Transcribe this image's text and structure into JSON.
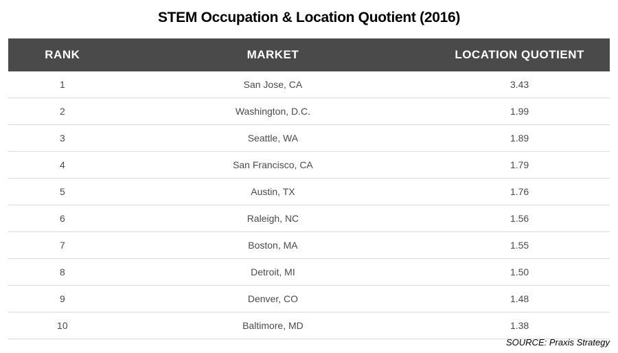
{
  "title": "STEM Occupation & Location Quotient (2016)",
  "source": "SOURCE: Praxis Strategy",
  "table": {
    "type": "table",
    "header_bg": "#4a4a4a",
    "header_color": "#ffffff",
    "row_border_color": "#d9d9d9",
    "cell_color": "#4a4a4a",
    "title_fontsize": 21,
    "header_fontsize": 17,
    "cell_fontsize": 14,
    "columns": [
      {
        "label": "RANK",
        "width_pct": 18
      },
      {
        "label": "MARKET",
        "width_pct": 52
      },
      {
        "label": "LOCATION QUOTIENT",
        "width_pct": 30
      }
    ],
    "rows": [
      {
        "rank": "1",
        "market": "San Jose, CA",
        "lq": "3.43"
      },
      {
        "rank": "2",
        "market": "Washington, D.C.",
        "lq": "1.99"
      },
      {
        "rank": "3",
        "market": "Seattle, WA",
        "lq": "1.89"
      },
      {
        "rank": "4",
        "market": "San Francisco, CA",
        "lq": "1.79"
      },
      {
        "rank": "5",
        "market": "Austin, TX",
        "lq": "1.76"
      },
      {
        "rank": "6",
        "market": "Raleigh, NC",
        "lq": "1.56"
      },
      {
        "rank": "7",
        "market": "Boston, MA",
        "lq": "1.55"
      },
      {
        "rank": "8",
        "market": "Detroit, MI",
        "lq": "1.50"
      },
      {
        "rank": "9",
        "market": "Denver, CO",
        "lq": "1.48"
      },
      {
        "rank": "10",
        "market": "Baltimore, MD",
        "lq": "1.38"
      }
    ]
  }
}
